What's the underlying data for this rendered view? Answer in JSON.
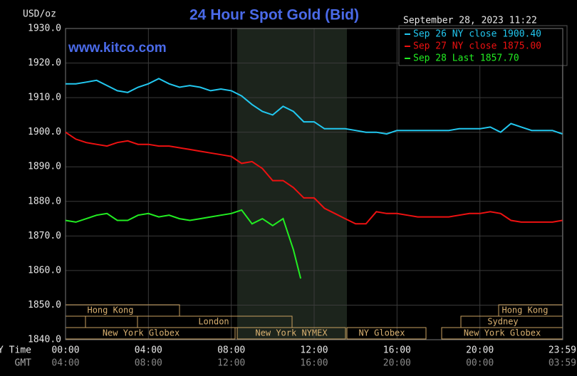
{
  "chart_data": {
    "type": "line",
    "title": "24 Hour Spot Gold (Bid)",
    "ylabel": "USD/oz",
    "watermark": "www.kitco.com",
    "timestamp": "September 28, 2023 11:22",
    "xlabel": "NY Time",
    "x2label": "GMT",
    "xlim": [
      0,
      24
    ],
    "ylim": [
      1840,
      1930
    ],
    "xticks": [
      {
        "value": 0,
        "label": "00:00"
      },
      {
        "value": 4,
        "label": "04:00"
      },
      {
        "value": 8,
        "label": "08:00"
      },
      {
        "value": 12,
        "label": "12:00"
      },
      {
        "value": 16,
        "label": "16:00"
      },
      {
        "value": 20,
        "label": "20:00"
      },
      {
        "value": 23.98,
        "label": "23:59"
      }
    ],
    "gmt_labels": [
      "04:00",
      "08:00",
      "12:00",
      "16:00",
      "20:00",
      "00:00",
      "03:59"
    ],
    "yticks": [
      {
        "value": 1840,
        "label": "1840.0"
      },
      {
        "value": 1850,
        "label": "1850.0"
      },
      {
        "value": 1860,
        "label": "1860.0"
      },
      {
        "value": 1870,
        "label": "1870.0"
      },
      {
        "value": 1880,
        "label": "1880.0"
      },
      {
        "value": 1890,
        "label": "1890.0"
      },
      {
        "value": 1900,
        "label": "1900.0"
      },
      {
        "value": 1910,
        "label": "1910.0"
      },
      {
        "value": 1920,
        "label": "1920.0"
      },
      {
        "value": 1930,
        "label": "1930.0"
      }
    ],
    "grid": true,
    "sessions": [
      "Hong Kong",
      "London",
      "New York Globex",
      "New York NYMEX",
      "NY Globex",
      "Hong Kong",
      "Sydney",
      "New York Globex"
    ],
    "series": [
      {
        "name": "Sep 26 NY close 1900.40",
        "color": "#22c8f0",
        "x": [
          0,
          0.5,
          1,
          1.5,
          2,
          2.5,
          3,
          3.5,
          4,
          4.5,
          5,
          5.5,
          6,
          6.5,
          7,
          7.5,
          8,
          8.5,
          9,
          9.5,
          10,
          10.5,
          11,
          11.5,
          12,
          12.5,
          13,
          13.5,
          14,
          14.5,
          15,
          15.5,
          16,
          16.5,
          17,
          17.5,
          18,
          18.5,
          19,
          19.5,
          20,
          20.5,
          21,
          21.5,
          22,
          22.5,
          23,
          23.5,
          23.98
        ],
        "values": [
          1914,
          1914,
          1914.5,
          1915,
          1913.5,
          1912,
          1911.5,
          1913,
          1914,
          1915.5,
          1914,
          1913,
          1913.5,
          1913,
          1912,
          1912.5,
          1912,
          1910.5,
          1908,
          1906,
          1905,
          1907.5,
          1906,
          1903,
          1903,
          1901,
          1901,
          1901,
          1900.5,
          1900,
          1900,
          1899.5,
          1900.5,
          1900.5,
          1900.5,
          1900.5,
          1900.5,
          1900.5,
          1901,
          1901,
          1901,
          1901.5,
          1900,
          1902.5,
          1901.5,
          1900.5,
          1900.5,
          1900.5,
          1899.5
        ]
      },
      {
        "name": "Sep 27 NY close 1875.00",
        "color": "#ee1111",
        "x": [
          0,
          0.5,
          1,
          1.5,
          2,
          2.5,
          3,
          3.5,
          4,
          4.5,
          5,
          5.5,
          6,
          6.5,
          7,
          7.5,
          8,
          8.5,
          9,
          9.5,
          10,
          10.5,
          11,
          11.5,
          12,
          12.5,
          13,
          13.5,
          14,
          14.5,
          15,
          15.5,
          16,
          16.5,
          17,
          17.5,
          18,
          18.5,
          19,
          19.5,
          20,
          20.5,
          21,
          21.5,
          22,
          22.5,
          23,
          23.5,
          23.98
        ],
        "values": [
          1900,
          1898,
          1897,
          1896.5,
          1896,
          1897,
          1897.5,
          1896.5,
          1896.5,
          1896,
          1896,
          1895.5,
          1895,
          1894.5,
          1894,
          1893.5,
          1893,
          1891,
          1891.5,
          1889.5,
          1886,
          1886,
          1884,
          1881,
          1881,
          1878,
          1876.5,
          1875,
          1873.5,
          1873.5,
          1877,
          1876.5,
          1876.5,
          1876,
          1875.5,
          1875.5,
          1875.5,
          1875.5,
          1876,
          1876.5,
          1876.5,
          1877,
          1876.5,
          1874.5,
          1874,
          1874,
          1874,
          1874,
          1874.5
        ]
      },
      {
        "name": "Sep 28 Last 1857.70",
        "color": "#22ee22",
        "x": [
          0,
          0.5,
          1,
          1.5,
          2,
          2.5,
          3,
          3.5,
          4,
          4.5,
          5,
          5.5,
          6,
          6.5,
          7,
          7.5,
          8,
          8.5,
          9,
          9.5,
          10,
          10.5,
          11,
          11.35
        ],
        "values": [
          1874.5,
          1874,
          1875,
          1876,
          1876.5,
          1874.5,
          1874.5,
          1876,
          1876.5,
          1875.5,
          1876,
          1875,
          1874.5,
          1875,
          1875.5,
          1876,
          1876.5,
          1877.5,
          1873.5,
          1875,
          1873,
          1875,
          1866,
          1857.7
        ]
      }
    ]
  }
}
